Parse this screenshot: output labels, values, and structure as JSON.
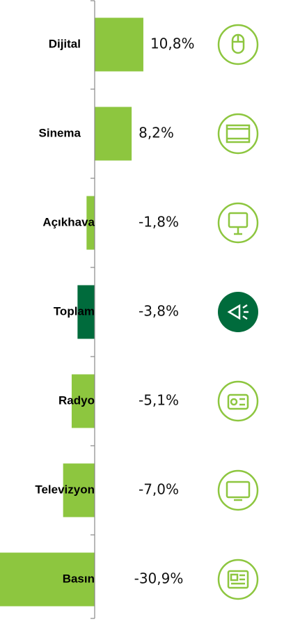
{
  "chart_data": {
    "type": "hbar",
    "categories": [
      "Dijital",
      "Sinema",
      "Açıkhava",
      "Toplam",
      "Radyo",
      "Televizyon",
      "Basın"
    ],
    "values": [
      10.8,
      8.2,
      -1.8,
      -3.8,
      -5.1,
      -7.0,
      -30.9
    ],
    "value_labels": [
      "10,8%",
      "8,2%",
      "-1,8%",
      "-3,8%",
      "-5,1%",
      "-7,0%",
      "-30,9%"
    ],
    "colors": [
      "#8dc63f",
      "#8dc63f",
      "#8dc63f",
      "#006b3c",
      "#8dc63f",
      "#8dc63f",
      "#8dc63f"
    ],
    "xlim": [
      -21,
      42
    ]
  }
}
